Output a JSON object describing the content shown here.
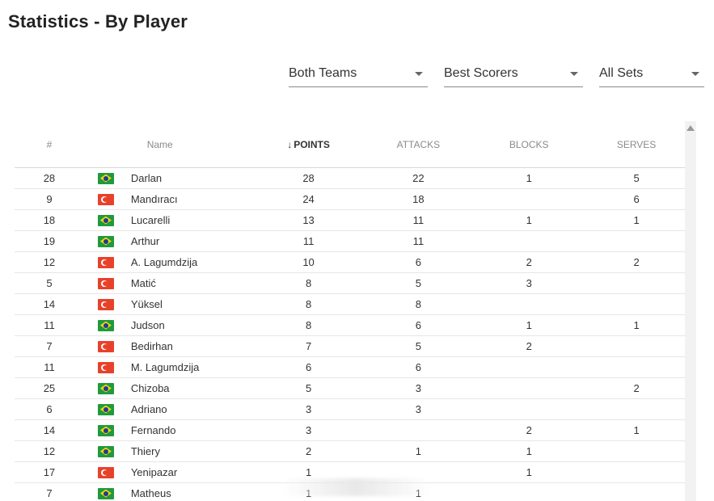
{
  "page": {
    "title": "Statistics - By Player"
  },
  "filters": [
    {
      "label": "Both Teams"
    },
    {
      "label": "Best Scorers"
    },
    {
      "label": "All Sets"
    }
  ],
  "table": {
    "headers": {
      "num": "#",
      "name": "Name",
      "points": "POINTS",
      "attacks": "ATTACKS",
      "blocks": "BLOCKS",
      "serves": "SERVES"
    },
    "sort_arrow": "↓",
    "rows": [
      {
        "num": "28",
        "flag": "brazil-flag-icon",
        "name": "Darlan",
        "points": "28",
        "attacks": "22",
        "blocks": "1",
        "serves": "5"
      },
      {
        "num": "9",
        "flag": "turkey-flag-icon",
        "name": "Mandıracı",
        "points": "24",
        "attacks": "18",
        "blocks": "",
        "serves": "6"
      },
      {
        "num": "18",
        "flag": "brazil-flag-icon",
        "name": "Lucarelli",
        "points": "13",
        "attacks": "11",
        "blocks": "1",
        "serves": "1"
      },
      {
        "num": "19",
        "flag": "brazil-flag-icon",
        "name": "Arthur",
        "points": "11",
        "attacks": "11",
        "blocks": "",
        "serves": ""
      },
      {
        "num": "12",
        "flag": "turkey-flag-icon",
        "name": "A. Lagumdzija",
        "points": "10",
        "attacks": "6",
        "blocks": "2",
        "serves": "2"
      },
      {
        "num": "5",
        "flag": "turkey-flag-icon",
        "name": "Matić",
        "points": "8",
        "attacks": "5",
        "blocks": "3",
        "serves": ""
      },
      {
        "num": "14",
        "flag": "turkey-flag-icon",
        "name": "Yüksel",
        "points": "8",
        "attacks": "8",
        "blocks": "",
        "serves": ""
      },
      {
        "num": "11",
        "flag": "brazil-flag-icon",
        "name": "Judson",
        "points": "8",
        "attacks": "6",
        "blocks": "1",
        "serves": "1"
      },
      {
        "num": "7",
        "flag": "turkey-flag-icon",
        "name": "Bedirhan",
        "points": "7",
        "attacks": "5",
        "blocks": "2",
        "serves": ""
      },
      {
        "num": "11",
        "flag": "turkey-flag-icon",
        "name": "M. Lagumdzija",
        "points": "6",
        "attacks": "6",
        "blocks": "",
        "serves": ""
      },
      {
        "num": "25",
        "flag": "brazil-flag-icon",
        "name": "Chizoba",
        "points": "5",
        "attacks": "3",
        "blocks": "",
        "serves": "2"
      },
      {
        "num": "6",
        "flag": "brazil-flag-icon",
        "name": "Adriano",
        "points": "3",
        "attacks": "3",
        "blocks": "",
        "serves": ""
      },
      {
        "num": "14",
        "flag": "brazil-flag-icon",
        "name": "Fernando",
        "points": "3",
        "attacks": "",
        "blocks": "2",
        "serves": "1"
      },
      {
        "num": "12",
        "flag": "brazil-flag-icon",
        "name": "Thiery",
        "points": "2",
        "attacks": "1",
        "blocks": "1",
        "serves": ""
      },
      {
        "num": "17",
        "flag": "turkey-flag-icon",
        "name": "Yenipazar",
        "points": "1",
        "attacks": "",
        "blocks": "1",
        "serves": ""
      },
      {
        "num": "7",
        "flag": "brazil-flag-icon",
        "name": "Matheus",
        "points": "1",
        "attacks": "1",
        "blocks": "",
        "serves": ""
      }
    ]
  }
}
